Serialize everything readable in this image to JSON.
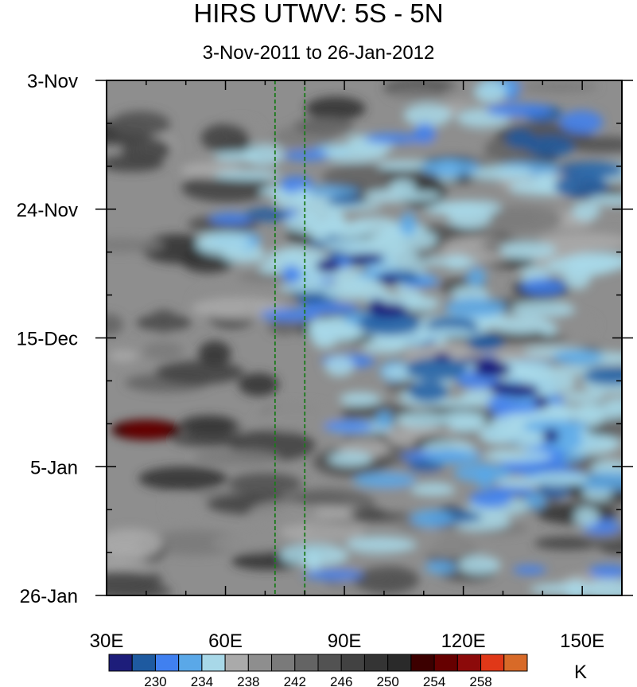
{
  "header": {
    "title": "HIRS UTWV: 5S - 5N",
    "subtitle": "3-Nov-2011 to 26-Jan-2012"
  },
  "chart_data": {
    "type": "heatmap",
    "title": "HIRS UTWV: 5S - 5N",
    "subtitle": "3-Nov-2011 to 26-Jan-2012",
    "xlabel": "",
    "ylabel": "",
    "x_tick_labels": [
      "30E",
      "60E",
      "90E",
      "120E",
      "150E"
    ],
    "x_tick_values": [
      30,
      60,
      90,
      120,
      150
    ],
    "xlim": [
      30,
      160
    ],
    "y_tick_labels": [
      "3-Nov",
      "24-Nov",
      "15-Dec",
      "5-Jan",
      "26-Jan"
    ],
    "y_tick_values": [
      "2011-11-03",
      "2011-11-24",
      "2011-12-15",
      "2012-01-05",
      "2012-01-26"
    ],
    "ylim": [
      "2011-11-03",
      "2012-01-26"
    ],
    "y_direction": "time increases downward",
    "reference_lines": [
      {
        "x": 72.5,
        "style": "dashed",
        "color": "#1a7a1a"
      },
      {
        "x": 80,
        "style": "dashed",
        "color": "#1a7a1a"
      }
    ],
    "colorbar": {
      "unit": "K",
      "levels": [
        228,
        230,
        232,
        234,
        236,
        238,
        240,
        242,
        244,
        246,
        248,
        250,
        252,
        254,
        256,
        258,
        260
      ],
      "tick_labels": [
        "230",
        "234",
        "238",
        "242",
        "246",
        "250",
        "254",
        "258"
      ],
      "tick_values": [
        230,
        234,
        238,
        242,
        246,
        250,
        254,
        258
      ],
      "colors": [
        "#1d1d7a",
        "#1e5aa0",
        "#4080f0",
        "#5aa8e8",
        "#a8d8e8",
        "#aaaaaa",
        "#8e8e8e",
        "#7a7a7a",
        "#646464",
        "#525252",
        "#424242",
        "#343434",
        "#2a2a2a",
        "#3c0000",
        "#660000",
        "#8c0a0a",
        "#e03818",
        "#d86a28"
      ]
    },
    "features": [
      {
        "desc": "moist (cold, blue) band propagating eastward",
        "start": {
          "lon": 70,
          "date": "2011-11-24"
        },
        "end": {
          "lon": 150,
          "date": "2012-01-01"
        }
      },
      {
        "desc": "dry (warm, dark red) spot",
        "lon": 40,
        "date": "2011-12-30"
      }
    ]
  }
}
